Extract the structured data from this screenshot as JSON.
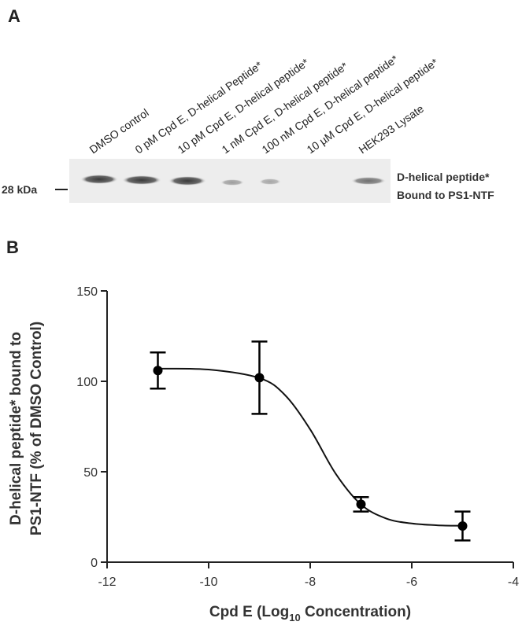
{
  "panel_a": {
    "label": "A",
    "lanes": [
      "DMSO control",
      "0 pM Cpd E, D-helical Peptide*",
      "10 pM Cpd E, D-helical peptide*",
      "1 nM Cpd E, D-helical peptide*",
      "100 nM Cpd E, D-helical peptide*",
      "10 µM Cpd E, D-helical peptide*",
      "HEK293 Lysate"
    ],
    "marker": "28 kDa",
    "band_label": [
      "D-helical peptide*",
      "Bound to PS1-NTF"
    ]
  },
  "chart_data": {
    "type": "scatter",
    "panel_label": "B",
    "xlabel": {
      "text": "Cpd E (Log",
      "sub": "10",
      "tail": " Concentration)"
    },
    "ylabel": [
      "D-helical peptide* bound to",
      "PS1-NTF (% of DMSO Control)"
    ],
    "x": [
      -11,
      -9,
      -7,
      -5
    ],
    "series": [
      {
        "color": "#000000",
        "values": [
          106,
          102,
          32,
          20
        ],
        "errors": [
          10,
          20,
          4,
          8
        ]
      }
    ],
    "fit": {
      "x": [
        -11,
        -10,
        -9,
        -8.5,
        -8,
        -7.5,
        -7,
        -6.5,
        -6,
        -5.5,
        -5
      ],
      "values": [
        107,
        106.5,
        101.8,
        92.5,
        73.4,
        49,
        31.9,
        24.1,
        21.4,
        20.4,
        20.1
      ]
    },
    "xlim": [
      -12,
      -4
    ],
    "xticks": [
      -12,
      -10,
      -8,
      -6,
      -4
    ],
    "ylim": [
      0,
      150
    ],
    "yticks": [
      0,
      50,
      100,
      150
    ]
  }
}
